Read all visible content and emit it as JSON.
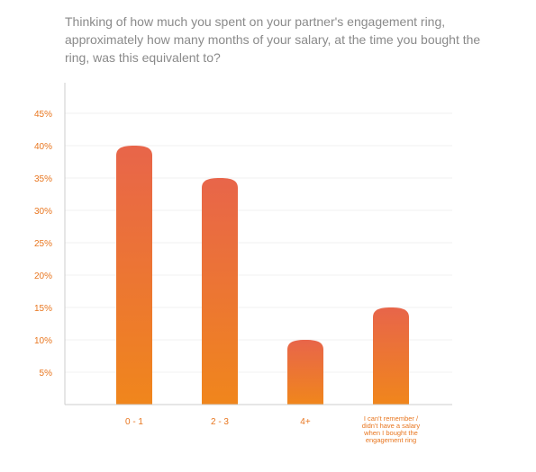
{
  "title": "Thinking of how much you spent on your partner's engagement ring, approximately how many months of your salary, at the time you bought the ring, was this equivalent to?",
  "colors": {
    "bar_top": "#e8654a",
    "bar_bottom": "#f0861c",
    "tick_text": "#e8761f",
    "title_text": "#8a8a8a",
    "axis": "#cccccc",
    "grid": "#f2f2f2"
  },
  "chart_data": {
    "type": "bar",
    "title": "Thinking of how much you spent on your partner's engagement ring, approximately how many months of your salary, at the time you bought the ring, was this equivalent to?",
    "categories": [
      "0 - 1",
      "2 - 3",
      "4+",
      "I can't remember / didn't have a salary when I bought the engagement ring"
    ],
    "values": [
      40,
      35,
      10,
      15
    ],
    "ylim": [
      0,
      45
    ],
    "yticks": [
      "5%",
      "10%",
      "15%",
      "20%",
      "25%",
      "30%",
      "35%",
      "40%",
      "45%"
    ],
    "xlabel": "",
    "ylabel": "",
    "grid": true
  }
}
